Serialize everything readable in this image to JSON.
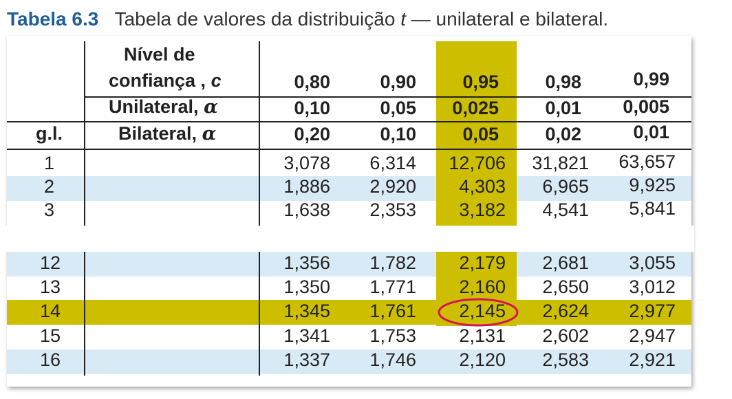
{
  "title": {
    "number": "Tabela 6.3",
    "description_pre": "Tabela de valores da distribuição",
    "variable": "t",
    "description_post": "— unilateral e bilateral."
  },
  "header": {
    "gl_label": "g.l.",
    "confidence_label_line1": "Nível de",
    "confidence_label_line2": "confiança ,",
    "confidence_symbol": "c",
    "unilateral_label": "Unilateral,",
    "bilateral_label": "Bilateral,",
    "alpha_symbol": "α",
    "confidence": [
      "0,80",
      "0,90",
      "0,95",
      "0,98",
      "0,99"
    ],
    "unilateral": [
      "0,10",
      "0,05",
      "0,025",
      "0,01",
      "0,005"
    ],
    "bilateral": [
      "0,20",
      "0,10",
      "0,05",
      "0,02",
      "0,01"
    ]
  },
  "rows_top": [
    {
      "gl": "1",
      "values": [
        "3,078",
        "6,314",
        "12,706",
        "31,821",
        "63,657"
      ]
    },
    {
      "gl": "2",
      "values": [
        "1,886",
        "2,920",
        "4,303",
        "6,965",
        "9,925"
      ]
    },
    {
      "gl": "3",
      "values": [
        "1,638",
        "2,353",
        "3,182",
        "4,541",
        "5,841"
      ]
    }
  ],
  "rows_bottom": [
    {
      "gl": "12",
      "values": [
        "1,356",
        "1,782",
        "2,179",
        "2,681",
        "3,055"
      ]
    },
    {
      "gl": "13",
      "values": [
        "1,350",
        "1,771",
        "2,160",
        "2,650",
        "3,012"
      ]
    },
    {
      "gl": "14",
      "values": [
        "1,345",
        "1,761",
        "2,145",
        "2,624",
        "2,977"
      ]
    },
    {
      "gl": "15",
      "values": [
        "1,341",
        "1,753",
        "2,131",
        "2,602",
        "2,947"
      ]
    },
    {
      "gl": "16",
      "values": [
        "1,337",
        "1,746",
        "2,120",
        "2,583",
        "2,921"
      ]
    }
  ],
  "colors": {
    "highlight": "#cdbf00",
    "stripe": "#d9eaf7",
    "circle": "#d4145a",
    "title_accent": "#1f5f96"
  }
}
